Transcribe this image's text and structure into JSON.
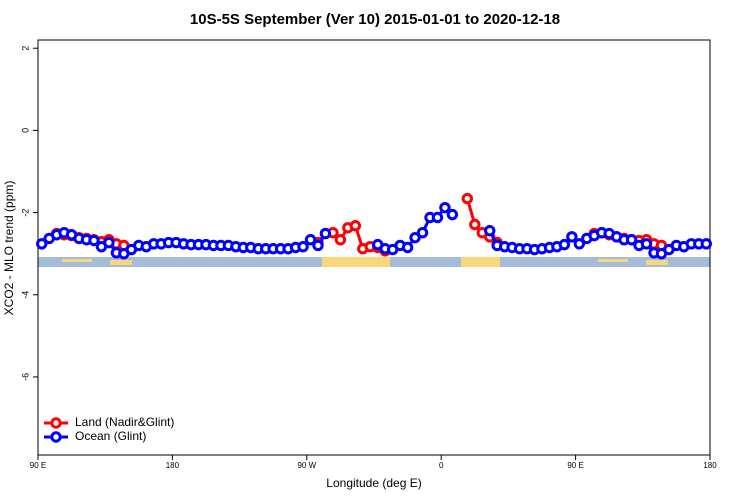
{
  "chart_data": {
    "type": "line",
    "title": "10S-5S September (Ver 10)   2015-01-01 to 2020-12-18",
    "xlabel": "Longitude (deg E)",
    "ylabel": "XCO2 - MLO trend (ppm)",
    "x": [
      92.5,
      97.5,
      102.5,
      107.5,
      112.5,
      117.5,
      122.5,
      127.5,
      132.5,
      137.5,
      142.5,
      147.5,
      152.5,
      157.5,
      162.5,
      167.5,
      172.5,
      177.5,
      182.5,
      187.5,
      192.5,
      197.5,
      202.5,
      207.5,
      212.5,
      217.5,
      222.5,
      227.5,
      232.5,
      237.5,
      242.5,
      247.5,
      252.5,
      257.5,
      262.5,
      267.5,
      272.5,
      277.5,
      282.5,
      287.5,
      292.5,
      297.5,
      302.5,
      307.5,
      312.5,
      317.5,
      322.5,
      327.5,
      332.5,
      337.5,
      342.5,
      347.5,
      352.5,
      357.5,
      362.5,
      367.5,
      372.5,
      377.5,
      382.5,
      387.5,
      392.5,
      397.5,
      402.5,
      407.5,
      412.5,
      417.5,
      422.5,
      427.5,
      432.5,
      437.5,
      442.5,
      447.5,
      452.5,
      457.5,
      462.5,
      467.5,
      472.5,
      477.5,
      482.5,
      487.5,
      492.5,
      497.5,
      502.5,
      507.5,
      512.5,
      517.5,
      522.5,
      527.5,
      532.5,
      537.5
    ],
    "series": [
      {
        "name": "Land (Nadir&Glint)",
        "color": "#ff0000",
        "values": [
          null,
          null,
          -2.51,
          -2.54,
          -2.56,
          -2.61,
          -2.63,
          -2.66,
          -2.71,
          -2.66,
          -2.76,
          -2.8,
          -2.9,
          null,
          null,
          null,
          null,
          null,
          null,
          null,
          null,
          null,
          null,
          null,
          null,
          null,
          null,
          null,
          null,
          null,
          null,
          null,
          null,
          null,
          null,
          null,
          null,
          -2.73,
          -2.51,
          -2.49,
          -2.66,
          -2.37,
          -2.32,
          -2.88,
          -2.83,
          -2.85,
          -2.93,
          null,
          null,
          null,
          null,
          null,
          null,
          null,
          null,
          null,
          null,
          -1.66,
          -2.29,
          -2.49,
          -2.59,
          -2.73,
          null,
          null,
          null,
          null,
          null,
          null,
          null,
          null,
          null,
          null,
          null,
          null,
          -2.51,
          -2.49,
          -2.54,
          -2.59,
          -2.63,
          -2.66,
          -2.68,
          -2.66,
          -2.76,
          -2.8,
          -2.9,
          null,
          null,
          null,
          null,
          null
        ]
      },
      {
        "name": "Ocean (Glint)",
        "color": "#0000ff",
        "values": [
          -2.76,
          -2.63,
          -2.54,
          -2.49,
          -2.54,
          -2.63,
          -2.66,
          -2.68,
          -2.83,
          -2.73,
          -2.98,
          -3.0,
          -2.9,
          -2.8,
          -2.83,
          -2.76,
          -2.76,
          -2.73,
          -2.73,
          -2.76,
          -2.78,
          -2.78,
          -2.78,
          -2.8,
          -2.8,
          -2.8,
          -2.83,
          -2.85,
          -2.85,
          -2.88,
          -2.88,
          -2.88,
          -2.88,
          -2.88,
          -2.85,
          -2.83,
          -2.66,
          -2.8,
          -2.51,
          null,
          null,
          null,
          null,
          null,
          null,
          -2.78,
          -2.88,
          -2.9,
          -2.8,
          -2.85,
          -2.61,
          -2.49,
          -2.12,
          -2.12,
          -1.88,
          -2.05,
          null,
          null,
          null,
          null,
          -2.44,
          -2.8,
          -2.83,
          -2.85,
          -2.88,
          -2.88,
          -2.9,
          -2.88,
          -2.85,
          -2.83,
          -2.78,
          -2.59,
          -2.76,
          -2.63,
          -2.56,
          -2.49,
          -2.51,
          -2.59,
          -2.66,
          -2.66,
          -2.8,
          -2.76,
          -2.98,
          -3.0,
          -2.9,
          -2.8,
          -2.83,
          -2.76,
          -2.76,
          -2.76
        ]
      }
    ],
    "xlim": [
      90,
      540
    ],
    "xticks": [
      {
        "value": 90,
        "label": "90 E"
      },
      180,
      {
        "value": 270,
        "label": "90 W"
      },
      {
        "value": 360,
        "label": "0"
      },
      {
        "value": 450,
        "label": "90 E"
      },
      {
        "value": 540,
        "label": "180"
      }
    ],
    "ylim": [
      -7.9,
      2.2
    ],
    "yticks": [
      2,
      0,
      -2,
      -4,
      -6
    ],
    "legend": "bottom-left"
  }
}
